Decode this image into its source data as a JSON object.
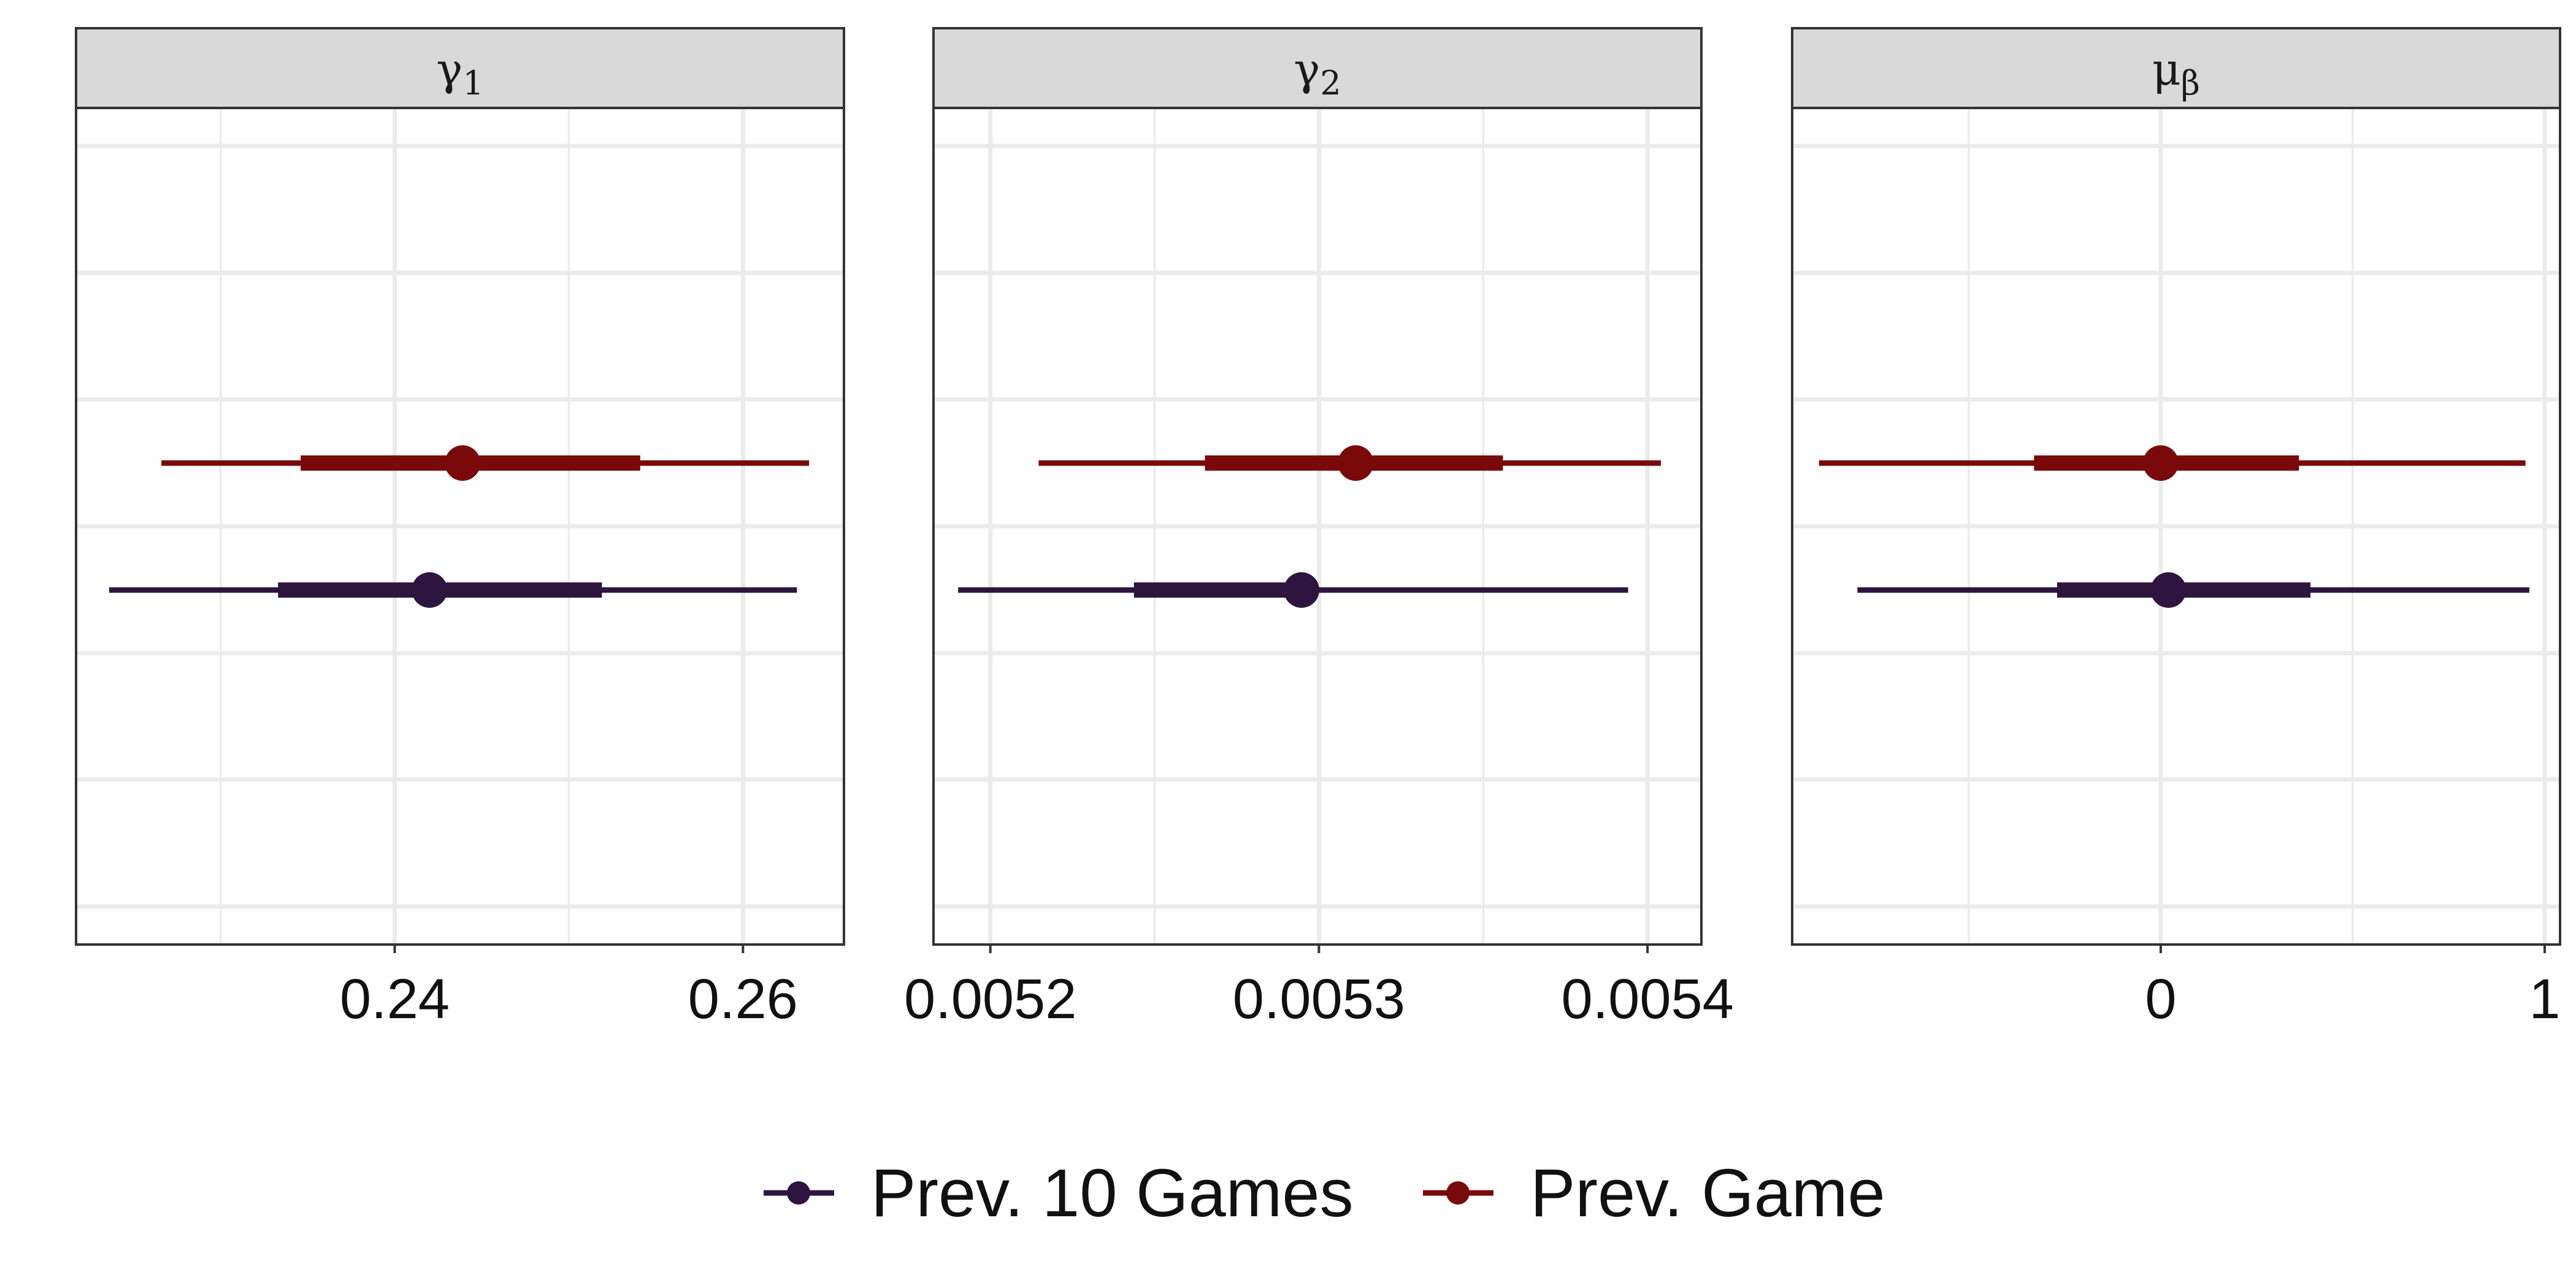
{
  "chart_data": {
    "type": "interval",
    "legend": {
      "position": "bottom",
      "entries": [
        {
          "name": "Prev. 10 Games",
          "color": "#2d1540"
        },
        {
          "name": "Prev. Game",
          "color": "#7a0a0a"
        }
      ]
    },
    "panels": [
      {
        "strip": "γ1",
        "strip_base": "γ",
        "strip_sub": "1",
        "xlim": [
          0.2217,
          0.2658
        ],
        "ticks": [
          0.24,
          0.26
        ],
        "tick_labels": [
          "0.24",
          "0.26"
        ],
        "series": [
          {
            "name": "Prev. 10 Games",
            "point": 0.242,
            "inner": [
              0.2333,
              0.2519
            ],
            "outer": [
              0.2236,
              0.2631
            ]
          },
          {
            "name": "Prev. Game",
            "point": 0.2439,
            "inner": [
              0.2346,
              0.2541
            ],
            "outer": [
              0.2266,
              0.2638
            ]
          }
        ]
      },
      {
        "strip": "γ2",
        "strip_base": "γ",
        "strip_sub": "2",
        "xlim": [
          0.0051827,
          0.0054164
        ],
        "ticks": [
          0.0052,
          0.0053,
          0.0054
        ],
        "tick_labels": [
          "0.0052",
          "0.0053",
          "0.0054"
        ],
        "series": [
          {
            "name": "Prev. 10 Games",
            "point": 0.0052947,
            "inner": [
              0.0052437,
              0.0052939
            ],
            "outer": [
              0.0051902,
              0.0053941
            ]
          },
          {
            "name": "Prev. Game",
            "point": 0.0053112,
            "inner": [
              0.0052653,
              0.005356
            ],
            "outer": [
              0.0052147,
              0.0054041
            ]
          }
        ]
      },
      {
        "strip": "μβ",
        "strip_base": "μ",
        "strip_sub": "β",
        "xlim": [
          -0.96,
          1.04
        ],
        "ticks": [
          0,
          1
        ],
        "tick_labels": [
          "0",
          "1"
        ],
        "series": [
          {
            "name": "Prev. 10 Games",
            "point": 0.02,
            "inner": [
              -0.27,
              0.39
            ],
            "outer": [
              -0.79,
              0.96
            ]
          },
          {
            "name": "Prev. Game",
            "point": 0.0,
            "inner": [
              -0.33,
              0.36
            ],
            "outer": [
              -0.89,
              0.95
            ]
          }
        ]
      }
    ]
  }
}
